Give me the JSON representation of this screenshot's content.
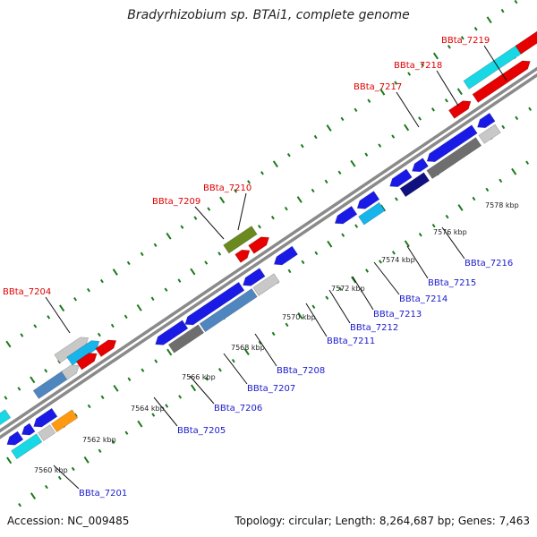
{
  "title": "Bradyrhizobium sp. BTAi1, complete genome",
  "footer": {
    "accession": "Accession: NC_009485",
    "summary": "Topology: circular; Length: 8,264,687 bp; Genes: 7,463"
  },
  "axis_labels": [
    "7560 kbp",
    "7562 kbp",
    "7564 kbp",
    "7566 kbp",
    "7568 kbp",
    "7570 kbp",
    "7572 kbp",
    "7574 kbp",
    "7576 kbp",
    "7578 kbp"
  ],
  "colors": {
    "blue": "#1a1ae6",
    "steel": "#4f86c0",
    "gray": "#6e6e6e",
    "light_gray": "#c8c8c8",
    "red": "#e60000",
    "cyan": "#18d8e6",
    "sky": "#18b4ec",
    "navy": "#101080",
    "olive": "#6a8a20",
    "orange": "#ff9a10",
    "tick": "#1a7a1a",
    "backbone": "#8a8a8a"
  },
  "gene_labels": [
    {
      "name": "BBta_7201",
      "strand": "minus"
    },
    {
      "name": "BBta_7204",
      "strand": "plus"
    },
    {
      "name": "BBta_7205",
      "strand": "minus"
    },
    {
      "name": "BBta_7206",
      "strand": "minus"
    },
    {
      "name": "BBta_7207",
      "strand": "minus"
    },
    {
      "name": "BBta_7208",
      "strand": "minus"
    },
    {
      "name": "BBta_7209",
      "strand": "plus"
    },
    {
      "name": "BBta_7210",
      "strand": "plus"
    },
    {
      "name": "BBta_7211",
      "strand": "minus"
    },
    {
      "name": "BBta_7212",
      "strand": "minus"
    },
    {
      "name": "BBta_7213",
      "strand": "minus"
    },
    {
      "name": "BBta_7214",
      "strand": "minus"
    },
    {
      "name": "BBta_7215",
      "strand": "minus"
    },
    {
      "name": "BBta_7216",
      "strand": "minus"
    },
    {
      "name": "BBta_7217",
      "strand": "plus"
    },
    {
      "name": "BBta_7218",
      "strand": "plus"
    },
    {
      "name": "BBta_7219",
      "strand": "plus"
    }
  ]
}
